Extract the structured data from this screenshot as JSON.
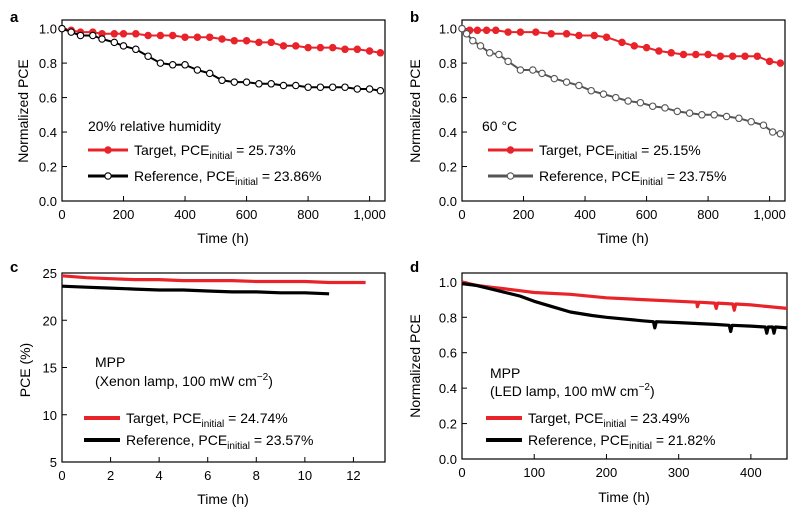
{
  "colors": {
    "target": "#e8232a",
    "reference": "#000000",
    "reference_b": "#555555",
    "axis": "#000000"
  },
  "chart_data": [
    {
      "panel": "a",
      "type": "line",
      "xlabel": "Time (h)",
      "ylabel": "Normalized PCE",
      "xlim": [
        0,
        1050
      ],
      "ylim": [
        0,
        1.05
      ],
      "xticks": [
        0,
        200,
        400,
        600,
        800,
        1000
      ],
      "xtick_labels": [
        "0",
        "200",
        "400",
        "600",
        "800",
        "1,000"
      ],
      "yticks": [
        0,
        0.2,
        0.4,
        0.6,
        0.8,
        1.0
      ],
      "ytick_labels": [
        "0.0",
        "0.2",
        "0.4",
        "0.6",
        "0.8",
        "1.0"
      ],
      "annotation": "20% relative humidity",
      "legend_position": "lower-left",
      "series": [
        {
          "key": "target",
          "label_main": "Target, PCE",
          "label_sub": "initial",
          "label_tail": " = 25.73%",
          "marker": "filled",
          "x": [
            0,
            30,
            60,
            100,
            130,
            170,
            200,
            240,
            280,
            320,
            360,
            400,
            440,
            480,
            520,
            560,
            600,
            640,
            680,
            720,
            760,
            800,
            840,
            880,
            920,
            960,
            1000,
            1035
          ],
          "y": [
            1.0,
            0.99,
            0.98,
            0.98,
            0.97,
            0.97,
            0.97,
            0.97,
            0.96,
            0.96,
            0.96,
            0.95,
            0.95,
            0.95,
            0.94,
            0.93,
            0.93,
            0.92,
            0.92,
            0.9,
            0.9,
            0.89,
            0.89,
            0.89,
            0.88,
            0.88,
            0.87,
            0.86
          ]
        },
        {
          "key": "reference",
          "label_main": "Reference, PCE",
          "label_sub": "initial",
          "label_tail": " = 23.86%",
          "marker": "open",
          "x": [
            0,
            30,
            60,
            100,
            130,
            170,
            200,
            240,
            280,
            320,
            360,
            400,
            440,
            480,
            520,
            560,
            600,
            640,
            680,
            720,
            760,
            800,
            840,
            880,
            920,
            960,
            1000,
            1035
          ],
          "y": [
            1.0,
            0.98,
            0.96,
            0.96,
            0.94,
            0.92,
            0.9,
            0.88,
            0.84,
            0.8,
            0.79,
            0.79,
            0.76,
            0.74,
            0.7,
            0.69,
            0.69,
            0.68,
            0.68,
            0.67,
            0.67,
            0.66,
            0.66,
            0.66,
            0.66,
            0.65,
            0.65,
            0.64
          ]
        }
      ]
    },
    {
      "panel": "b",
      "type": "line",
      "xlabel": "Time (h)",
      "ylabel": "Normalized PCE",
      "xlim": [
        0,
        1050
      ],
      "ylim": [
        0,
        1.05
      ],
      "xticks": [
        0,
        200,
        400,
        600,
        800,
        1000
      ],
      "xtick_labels": [
        "0",
        "200",
        "400",
        "600",
        "800",
        "1,000"
      ],
      "yticks": [
        0,
        0.2,
        0.4,
        0.6,
        0.8,
        1.0
      ],
      "ytick_labels": [
        "0.0",
        "0.2",
        "0.4",
        "0.6",
        "0.8",
        "1.0"
      ],
      "annotation": "60 °C",
      "legend_position": "lower-right",
      "series": [
        {
          "key": "target",
          "label_main": "Target, PCE",
          "label_sub": "initial",
          "label_tail": " = 25.15%",
          "marker": "filled",
          "x": [
            0,
            25,
            50,
            80,
            110,
            150,
            190,
            240,
            290,
            340,
            380,
            430,
            470,
            520,
            560,
            600,
            640,
            680,
            720,
            760,
            800,
            840,
            880,
            920,
            960,
            1000,
            1035
          ],
          "y": [
            1.0,
            0.99,
            0.99,
            0.99,
            0.99,
            0.98,
            0.98,
            0.98,
            0.97,
            0.97,
            0.96,
            0.96,
            0.95,
            0.92,
            0.9,
            0.89,
            0.87,
            0.86,
            0.85,
            0.85,
            0.85,
            0.84,
            0.84,
            0.84,
            0.84,
            0.81,
            0.8
          ]
        },
        {
          "key": "reference",
          "label_main": "Reference, PCE",
          "label_sub": "initial",
          "label_tail": " = 23.75%",
          "marker": "open",
          "x": [
            0,
            15,
            35,
            60,
            90,
            120,
            150,
            190,
            230,
            260,
            300,
            340,
            380,
            420,
            460,
            500,
            540,
            580,
            620,
            660,
            700,
            740,
            780,
            820,
            860,
            900,
            940,
            980,
            1010,
            1035
          ],
          "y": [
            1.0,
            0.97,
            0.93,
            0.9,
            0.86,
            0.85,
            0.81,
            0.76,
            0.76,
            0.74,
            0.71,
            0.69,
            0.67,
            0.64,
            0.62,
            0.6,
            0.58,
            0.57,
            0.55,
            0.54,
            0.52,
            0.51,
            0.5,
            0.5,
            0.49,
            0.48,
            0.46,
            0.44,
            0.4,
            0.39
          ]
        }
      ]
    },
    {
      "panel": "c",
      "type": "line",
      "xlabel": "Time (h)",
      "ylabel": "PCE (%)",
      "xlim": [
        0,
        13.3
      ],
      "ylim": [
        5,
        25
      ],
      "xticks": [
        0,
        2,
        4,
        6,
        8,
        10,
        12
      ],
      "xtick_labels": [
        "0",
        "2",
        "4",
        "6",
        "8",
        "10",
        "12"
      ],
      "yticks": [
        5,
        10,
        15,
        20,
        25
      ],
      "ytick_labels": [
        "5",
        "10",
        "15",
        "20",
        "25"
      ],
      "annotation_lines": [
        "MPP",
        "(Xenon lamp, 100 mW cm",
        "−2",
        ")"
      ],
      "legend_position": "lower-left",
      "series": [
        {
          "key": "target",
          "label_main": "Target, PCE",
          "label_sub": "initial",
          "label_tail": " = 24.74%",
          "marker": "none",
          "x": [
            0,
            1,
            2,
            3,
            4,
            5,
            6,
            7,
            8,
            9,
            10,
            11,
            12,
            12.5
          ],
          "y": [
            24.7,
            24.5,
            24.4,
            24.3,
            24.3,
            24.2,
            24.2,
            24.2,
            24.1,
            24.1,
            24.1,
            24.0,
            24.0,
            24.0
          ]
        },
        {
          "key": "reference",
          "label_main": "Reference, PCE",
          "label_sub": "initial",
          "label_tail": " = 23.57%",
          "marker": "none",
          "x": [
            0,
            1,
            2,
            3,
            4,
            5,
            6,
            7,
            8,
            9,
            10,
            11
          ],
          "y": [
            23.6,
            23.5,
            23.4,
            23.3,
            23.2,
            23.2,
            23.1,
            23.0,
            23.0,
            22.9,
            22.9,
            22.8
          ]
        }
      ]
    },
    {
      "panel": "d",
      "type": "line",
      "xlabel": "Time (h)",
      "ylabel": "Normalized PCE",
      "xlim": [
        0,
        450
      ],
      "ylim": [
        0,
        1.05
      ],
      "xticks": [
        0,
        100,
        200,
        300,
        400
      ],
      "xtick_labels": [
        "0",
        "100",
        "200",
        "300",
        "400"
      ],
      "yticks": [
        0,
        0.2,
        0.4,
        0.6,
        0.8,
        1.0
      ],
      "ytick_labels": [
        "0.0",
        "0.2",
        "0.4",
        "0.6",
        "0.8",
        "1.0"
      ],
      "annotation_lines": [
        "MPP",
        "(LED lamp, 100 mW cm",
        "−2",
        ")"
      ],
      "legend_position": "lower-left",
      "series": [
        {
          "key": "target",
          "label_main": "Target, PCE",
          "label_sub": "initial",
          "label_tail": " = 23.49%",
          "marker": "none",
          "x": [
            0,
            20,
            40,
            60,
            80,
            100,
            150,
            200,
            250,
            300,
            325,
            326,
            328,
            350,
            352,
            354,
            375,
            377,
            379,
            400,
            450
          ],
          "y": [
            1.0,
            0.98,
            0.97,
            0.96,
            0.95,
            0.94,
            0.93,
            0.91,
            0.9,
            0.89,
            0.885,
            0.86,
            0.885,
            0.88,
            0.85,
            0.88,
            0.875,
            0.84,
            0.875,
            0.87,
            0.85
          ]
        },
        {
          "key": "reference",
          "label_main": "Reference, PCE",
          "label_sub": "initial",
          "label_tail": " = 21.82%",
          "marker": "none",
          "x": [
            0,
            20,
            40,
            60,
            80,
            100,
            125,
            150,
            180,
            200,
            250,
            265,
            267,
            269,
            300,
            350,
            370,
            372,
            374,
            400,
            420,
            422,
            424,
            430,
            432,
            434,
            450
          ],
          "y": [
            0.99,
            0.98,
            0.96,
            0.94,
            0.92,
            0.89,
            0.86,
            0.83,
            0.81,
            0.8,
            0.78,
            0.775,
            0.74,
            0.775,
            0.77,
            0.76,
            0.755,
            0.72,
            0.755,
            0.75,
            0.745,
            0.71,
            0.745,
            0.745,
            0.71,
            0.745,
            0.74
          ]
        }
      ]
    }
  ]
}
